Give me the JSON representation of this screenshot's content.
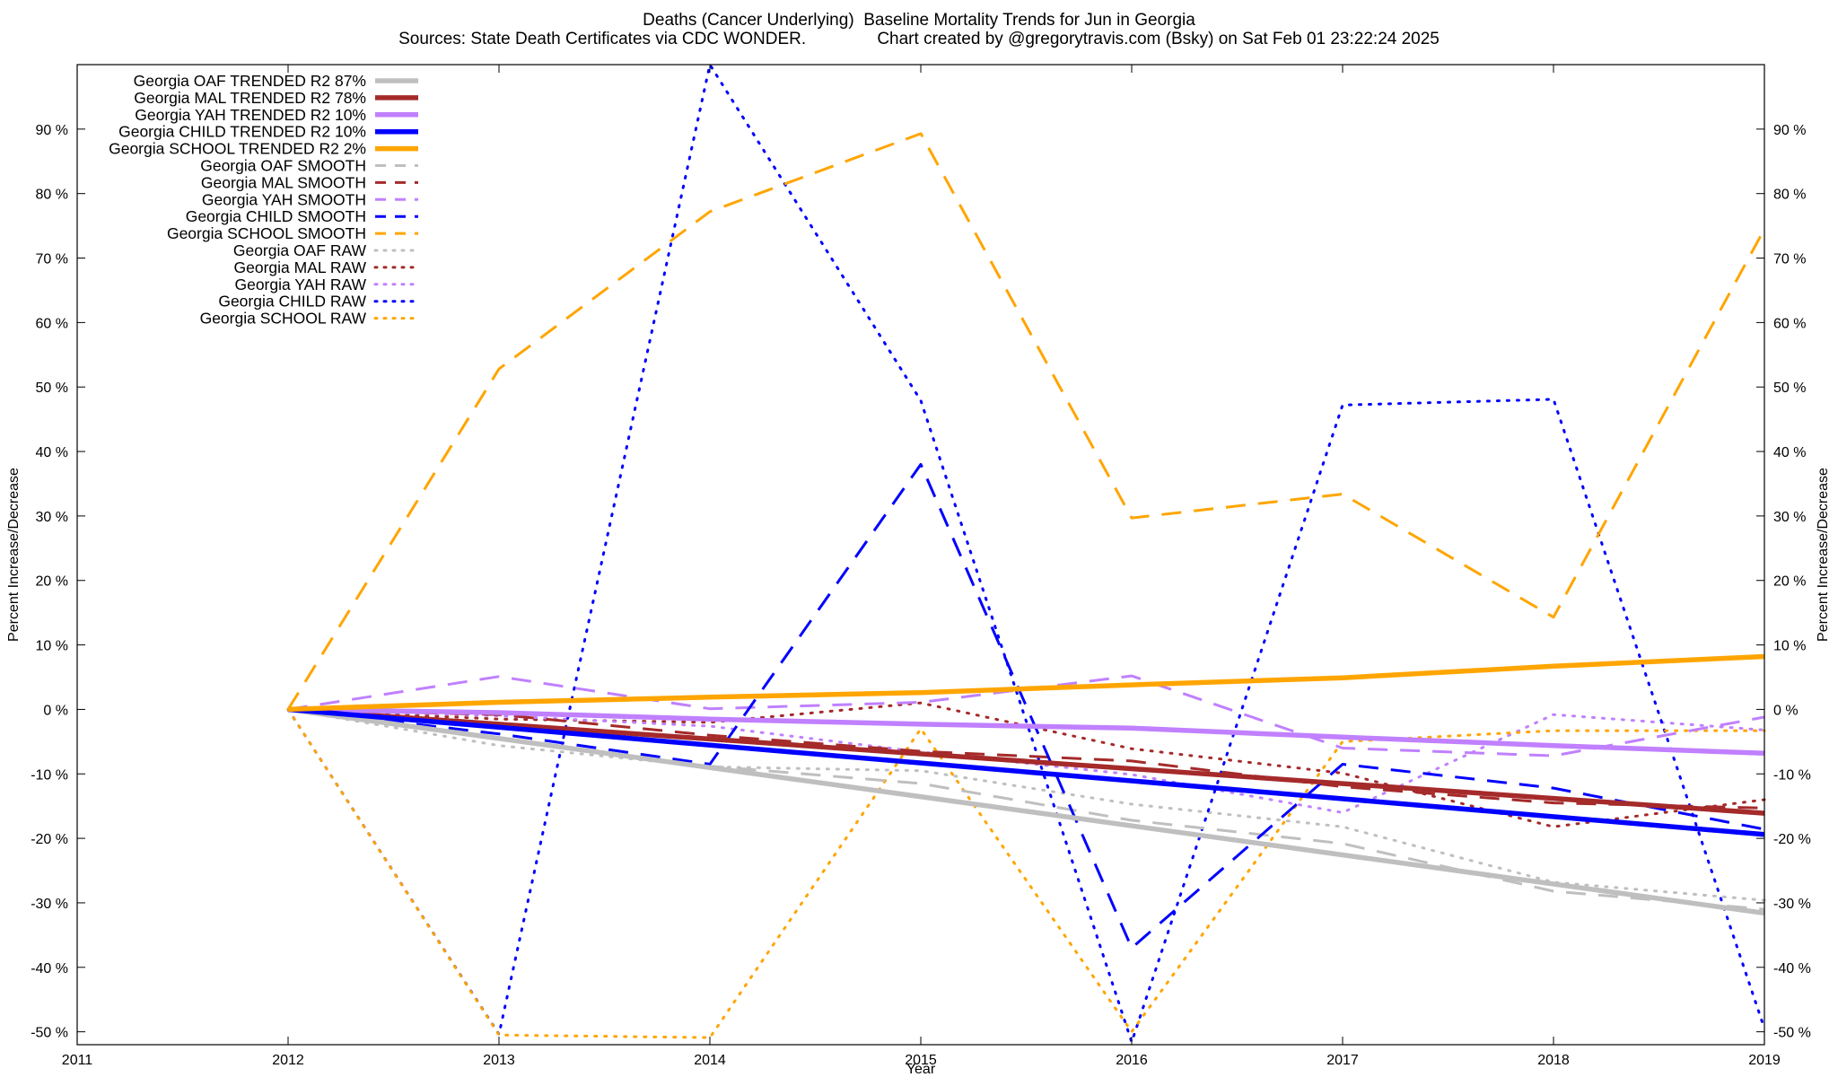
{
  "chart_data": {
    "type": "line",
    "title": "Deaths (Cancer Underlying)  Baseline Mortality Trends for Jun in Georgia",
    "subtitle_left": "Sources: State Death Certificates via CDC WONDER.",
    "subtitle_right": "Chart created by @gregorytravis.com (Bsky) on Sat Feb 01 23:22:24 2025",
    "xlabel": "Year",
    "ylabel": "Percent Increase/Decrease",
    "xlim": [
      2011,
      2019
    ],
    "ylim": [
      -52,
      100
    ],
    "x_ticks": [
      "2011",
      "2012",
      "2013",
      "2014",
      "2015",
      "2016",
      "2017",
      "2018",
      "2019"
    ],
    "y_ticks": [
      "90 %",
      "80 %",
      "70 %",
      "60 %",
      "50 %",
      "40 %",
      "30 %",
      "20 %",
      "10 %",
      "0 %",
      "-10 %",
      "-20 %",
      "-30 %",
      "-40 %",
      "-50 %"
    ],
    "y_tick_values": [
      90,
      80,
      70,
      60,
      50,
      40,
      30,
      20,
      10,
      0,
      -10,
      -20,
      -30,
      -40,
      -50
    ],
    "grid": false,
    "legend_position": "top-left",
    "series": [
      {
        "name": "Georgia OAF TRENDED R2  87%",
        "color": "#bfbfbf",
        "style": "solid",
        "x": [
          2012,
          2019
        ],
        "values": [
          0,
          -31.6
        ]
      },
      {
        "name": "Georgia MAL TRENDED R2  78%",
        "color": "#a52a2a",
        "style": "solid",
        "x": [
          2012,
          2019
        ],
        "values": [
          0,
          -16.1
        ]
      },
      {
        "name": "Georgia YAH TRENDED R2  10%",
        "color": "#c080ff",
        "style": "solid",
        "x": [
          2012,
          2013,
          2014,
          2015,
          2016,
          2017,
          2018,
          2019
        ],
        "values": [
          0,
          -0.5,
          -1.5,
          -2.3,
          -2.9,
          -4.3,
          -5.6,
          -6.8
        ]
      },
      {
        "name": "Georgia CHILD TRENDED R2  10%",
        "color": "#0000ff",
        "style": "solid",
        "x": [
          2012,
          2019
        ],
        "values": [
          0,
          -19.4
        ]
      },
      {
        "name": "Georgia SCHOOL TRENDED R2  2%",
        "color": "#ffa500",
        "style": "solid",
        "x": [
          2012,
          2013,
          2014,
          2015,
          2016,
          2017,
          2018,
          2019
        ],
        "values": [
          0,
          1.1,
          1.9,
          2.6,
          3.8,
          4.9,
          6.7,
          8.2
        ]
      },
      {
        "name": "Georgia OAF SMOOTH",
        "color": "#bfbfbf",
        "style": "dashed",
        "x": [
          2012,
          2013,
          2014,
          2015,
          2016,
          2017,
          2018,
          2019
        ],
        "values": [
          0,
          -4.5,
          -8.8,
          -11.5,
          -17.2,
          -20.8,
          -28.2,
          -31.0
        ]
      },
      {
        "name": "Georgia MAL SMOOTH",
        "color": "#a52a2a",
        "style": "dashed",
        "x": [
          2012,
          2013,
          2014,
          2015,
          2016,
          2017,
          2018,
          2019
        ],
        "values": [
          0,
          -0.8,
          -4.0,
          -6.5,
          -8.0,
          -12.0,
          -14.5,
          -15.3
        ]
      },
      {
        "name": "Georgia YAH SMOOTH",
        "color": "#c080ff",
        "style": "dashed",
        "x": [
          2012,
          2013,
          2014,
          2015,
          2016,
          2017,
          2018,
          2019
        ],
        "values": [
          0,
          5.1,
          0.1,
          1.1,
          5.2,
          -6.0,
          -7.2,
          -1.2
        ]
      },
      {
        "name": "Georgia CHILD SMOOTH",
        "color": "#0000ff",
        "style": "dashed",
        "x": [
          2012,
          2013,
          2014,
          2015,
          2016,
          2017,
          2018,
          2019
        ],
        "values": [
          0,
          -3.8,
          -8.5,
          38.0,
          -37.0,
          -8.5,
          -12.2,
          -18.6
        ]
      },
      {
        "name": "Georgia SCHOOL SMOOTH",
        "color": "#ffa500",
        "style": "dashed",
        "x": [
          2012,
          2013,
          2014,
          2015,
          2016,
          2017,
          2018,
          2019
        ],
        "values": [
          0,
          52.8,
          77.2,
          89.3,
          29.7,
          33.4,
          14.3,
          74.5
        ]
      },
      {
        "name": "Georgia OAF RAW",
        "color": "#bfbfbf",
        "style": "dotted",
        "x": [
          2012,
          2013,
          2014,
          2015,
          2016,
          2017,
          2018,
          2019
        ],
        "values": [
          0,
          -5.6,
          -8.9,
          -9.5,
          -14.7,
          -18.2,
          -26.8,
          -29.6
        ]
      },
      {
        "name": "Georgia MAL RAW",
        "color": "#a52a2a",
        "style": "dotted",
        "x": [
          2012,
          2013,
          2014,
          2015,
          2016,
          2017,
          2018,
          2019
        ],
        "values": [
          0,
          -1.5,
          -2.0,
          1.0,
          -6.1,
          -9.9,
          -18.2,
          -14.0
        ]
      },
      {
        "name": "Georgia YAH RAW",
        "color": "#c080ff",
        "style": "dotted",
        "x": [
          2012,
          2013,
          2014,
          2015,
          2016,
          2017,
          2018,
          2019
        ],
        "values": [
          0,
          -1.0,
          -2.6,
          -6.6,
          -10.1,
          -16.0,
          -0.8,
          -3.2
        ]
      },
      {
        "name": "Georgia CHILD RAW",
        "color": "#0000ff",
        "style": "dotted",
        "x": [
          2012,
          2013,
          2014,
          2015,
          2016,
          2017,
          2018,
          2019
        ],
        "values": [
          0,
          -50.4,
          100.0,
          47.9,
          -51.6,
          47.2,
          48.1,
          -49.5
        ]
      },
      {
        "name": "Georgia SCHOOL RAW",
        "color": "#ffa500",
        "style": "dotted",
        "x": [
          2012,
          2013,
          2014,
          2015,
          2016,
          2017,
          2018,
          2019
        ],
        "values": [
          0,
          -50.5,
          -50.9,
          -3.0,
          -50.0,
          -5.0,
          -3.3,
          -3.3
        ]
      }
    ]
  }
}
